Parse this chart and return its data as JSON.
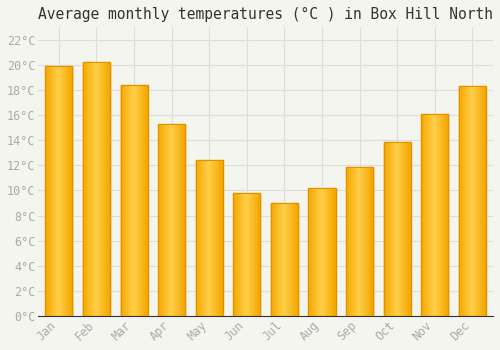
{
  "title": "Average monthly temperatures (°C ) in Box Hill North",
  "months": [
    "Jan",
    "Feb",
    "Mar",
    "Apr",
    "May",
    "Jun",
    "Jul",
    "Aug",
    "Sep",
    "Oct",
    "Nov",
    "Dec"
  ],
  "values": [
    19.9,
    20.2,
    18.4,
    15.3,
    12.4,
    9.8,
    9.0,
    10.2,
    11.9,
    13.9,
    16.1,
    18.3
  ],
  "bar_color_center": "#FFD04A",
  "bar_color_edge": "#F5A800",
  "bar_border_color": "#E09000",
  "ylim": [
    0,
    23
  ],
  "yticks": [
    0,
    2,
    4,
    6,
    8,
    10,
    12,
    14,
    16,
    18,
    20,
    22
  ],
  "ytick_labels": [
    "0°C",
    "2°C",
    "4°C",
    "6°C",
    "8°C",
    "10°C",
    "12°C",
    "14°C",
    "16°C",
    "18°C",
    "20°C",
    "22°C"
  ],
  "background_color": "#f5f5f0",
  "grid_color": "#dddddd",
  "title_fontsize": 10.5,
  "tick_fontsize": 8.5,
  "tick_color": "#aaaaaa",
  "font_family": "monospace"
}
